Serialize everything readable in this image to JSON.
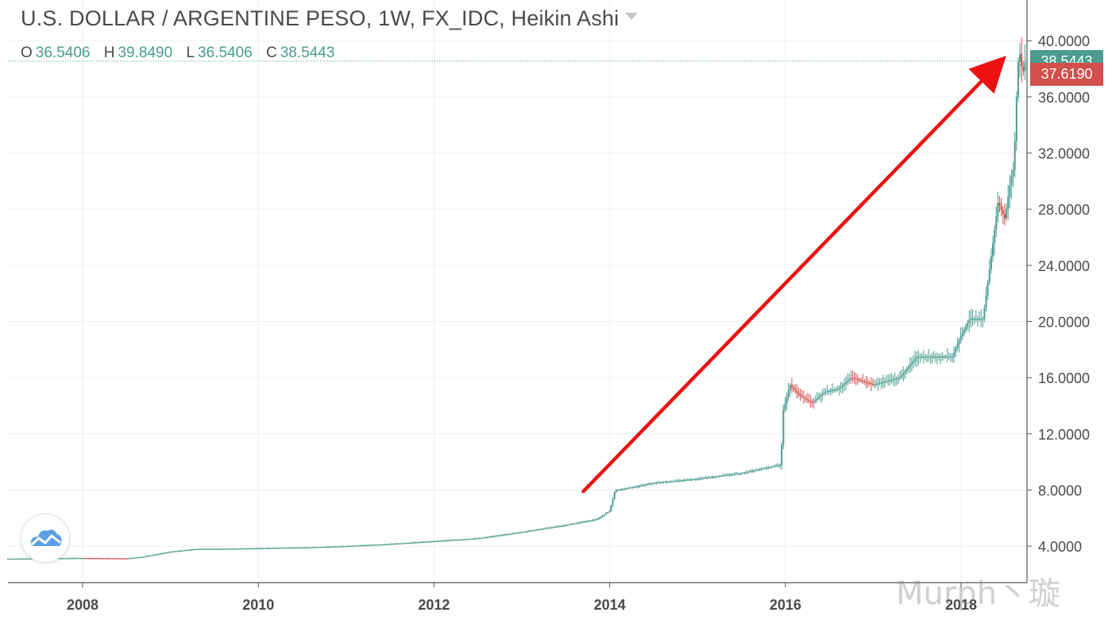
{
  "header": {
    "title": "U.S. DOLLAR / ARGENTINE PESO, 1W, FX_IDC, Heikin Ashi",
    "ohlc": [
      {
        "label": "O",
        "value": "36.5406"
      },
      {
        "label": "H",
        "value": "39.8490"
      },
      {
        "label": "L",
        "value": "36.5406"
      },
      {
        "label": "C",
        "value": "38.5443"
      }
    ]
  },
  "price_tags": {
    "last": "38.5443",
    "secondary": "37.6190"
  },
  "watermark": "Murph丶璇",
  "colors": {
    "up": "#4a9d8f",
    "down": "#d2504b",
    "arrow": "#ee1111",
    "grid": "#eef0f3"
  },
  "chart_data": {
    "type": "line",
    "style": "heikin-ashi candles",
    "title": "U.S. DOLLAR / ARGENTINE PESO, 1W, FX_IDC, Heikin Ashi",
    "xlabel": "",
    "ylabel": "",
    "xlim": [
      2007.15,
      2018.75
    ],
    "ylim": [
      1.4,
      42.9
    ],
    "x_ticks": [
      "2008",
      "2010",
      "2012",
      "2014",
      "2016",
      "2018"
    ],
    "y_ticks": [
      "4.0000",
      "8.0000",
      "12.0000",
      "16.0000",
      "20.0000",
      "24.0000",
      "28.0000",
      "32.0000",
      "36.0000",
      "40.0000"
    ],
    "grid": true,
    "series": [
      {
        "x": [
          2007.15,
          2007.5,
          2008.0,
          2008.5,
          2008.7,
          2009.0,
          2009.3,
          2009.6,
          2010.0,
          2010.5,
          2011.0,
          2011.5,
          2012.0,
          2012.5,
          2013.0,
          2013.5,
          2013.85,
          2014.0,
          2014.06,
          2014.1,
          2014.5,
          2015.0,
          2015.5,
          2015.95,
          2015.97,
          2016.05,
          2016.15,
          2016.3,
          2016.45,
          2016.6,
          2016.75,
          2017.0,
          2017.3,
          2017.5,
          2017.65,
          2017.9,
          2018.0,
          2018.1,
          2018.25,
          2018.35,
          2018.42,
          2018.5,
          2018.56,
          2018.6,
          2018.64,
          2018.66,
          2018.7,
          2018.73
        ],
        "values": [
          3.1,
          3.12,
          3.15,
          3.12,
          3.25,
          3.6,
          3.8,
          3.8,
          3.85,
          3.9,
          4.0,
          4.15,
          4.35,
          4.55,
          5.0,
          5.5,
          5.9,
          6.5,
          8.0,
          8.0,
          8.5,
          8.8,
          9.2,
          9.8,
          13.5,
          15.5,
          14.8,
          14.2,
          15.0,
          15.2,
          16.0,
          15.5,
          16.0,
          17.5,
          17.5,
          17.5,
          19.0,
          20.2,
          20.2,
          25.0,
          28.5,
          27.3,
          30.0,
          31.0,
          37.5,
          39.5,
          37.6,
          38.5443
        ]
      }
    ],
    "annotations": [
      {
        "type": "arrow",
        "from": [
          2013.7,
          7.9
        ],
        "to": [
          2018.4,
          38.2
        ]
      }
    ]
  }
}
